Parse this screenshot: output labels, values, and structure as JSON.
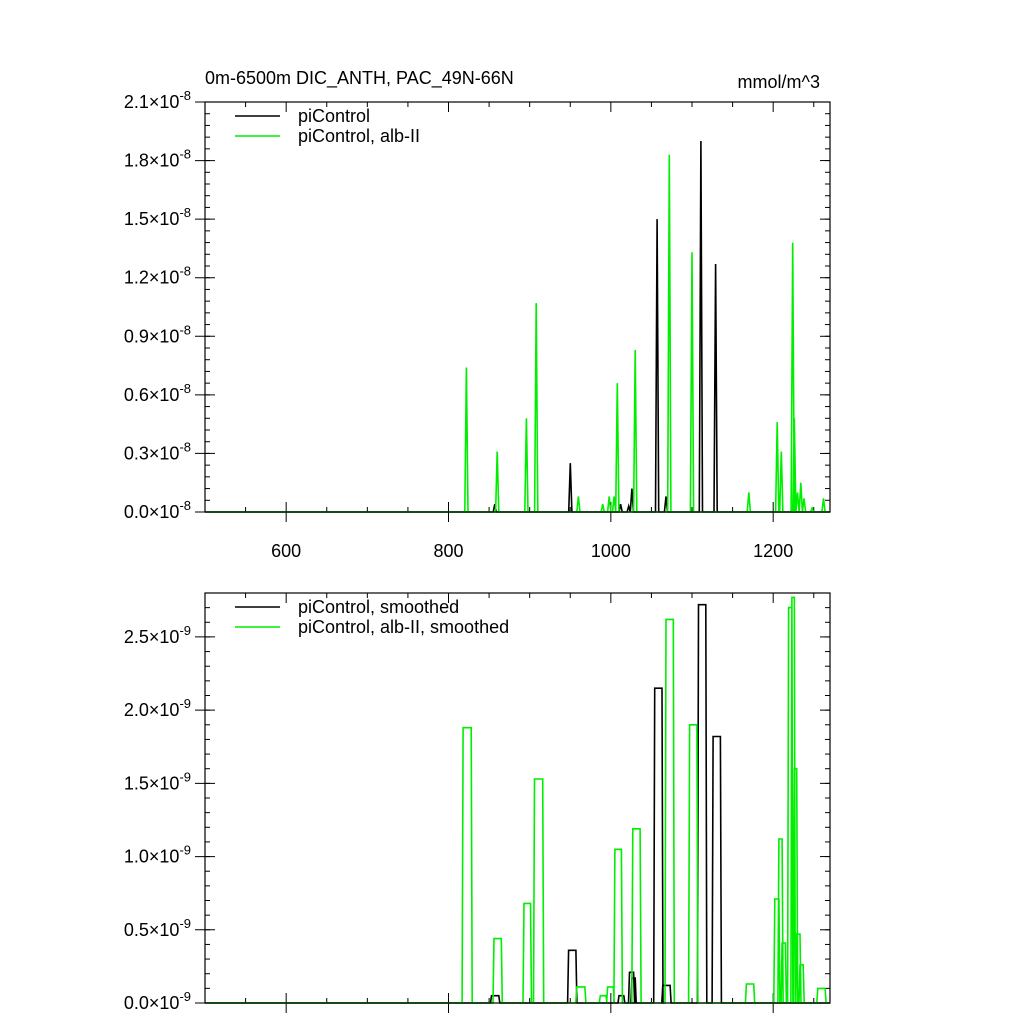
{
  "chart_data": [
    {
      "type": "line",
      "title": "0m-6500m DIC_ANTH, PAC_49N-66N",
      "units": "mmol/m^3",
      "xlim": [
        500,
        1270
      ],
      "ylim": [
        0,
        2.1e-08
      ],
      "x_ticks": [
        "600",
        "800",
        "1000",
        "1200"
      ],
      "x_tick_values": [
        600,
        800,
        1000,
        1200
      ],
      "y_ticks": [
        "0.0",
        "0.3",
        "0.6",
        "0.9",
        "1.2",
        "1.5",
        "1.8",
        "2.1"
      ],
      "y_tick_values": [
        0,
        3e-09,
        6e-09,
        9e-09,
        1.2e-08,
        1.5e-08,
        1.8e-08,
        2.1e-08
      ],
      "y_tick_exponent": "-8",
      "times_sign": "×10",
      "legend_position": "top-left",
      "series": [
        {
          "name": "piControl",
          "color": "#000000",
          "spikes": [
            [
              857,
              4e-10
            ],
            [
              950,
              2.5e-09
            ],
            [
              1012,
              4e-10
            ],
            [
              1022,
              3e-10
            ],
            [
              1026,
              1.2e-09
            ],
            [
              1057,
              1.5e-08
            ],
            [
              1068,
              8e-10
            ],
            [
              1111,
              1.9e-08
            ],
            [
              1129,
              1.27e-08
            ]
          ]
        },
        {
          "name": "piControl, alb-II",
          "color": "#00ee00",
          "spikes": [
            [
              822,
              7.4e-09
            ],
            [
              860,
              3.1e-09
            ],
            [
              896,
              4.8e-09
            ],
            [
              908,
              1.07e-08
            ],
            [
              960,
              8e-10
            ],
            [
              990,
              4e-10
            ],
            [
              998,
              8e-10
            ],
            [
              1004,
              8e-10
            ],
            [
              1008,
              6.6e-09
            ],
            [
              1030,
              8.3e-09
            ],
            [
              1072,
              1.83e-08
            ],
            [
              1100,
              1.33e-08
            ],
            [
              1170,
              1e-09
            ],
            [
              1205,
              4.6e-09
            ],
            [
              1210,
              3.1e-09
            ],
            [
              1224,
              1.38e-08
            ],
            [
              1226,
              4.8e-09
            ],
            [
              1230,
              1e-09
            ],
            [
              1234,
              1.5e-09
            ],
            [
              1238,
              7e-10
            ],
            [
              1248,
              2e-10
            ],
            [
              1262,
              7e-10
            ]
          ]
        }
      ]
    },
    {
      "type": "line",
      "xlim": [
        500,
        1270
      ],
      "ylim": [
        0,
        2.8e-09
      ],
      "x_tick_values": [
        600,
        800,
        1000,
        1200
      ],
      "y_ticks": [
        "0.0",
        "0.5",
        "1.0",
        "1.5",
        "2.0",
        "2.5"
      ],
      "y_tick_values": [
        0,
        5e-10,
        1e-09,
        1.5e-09,
        2e-09,
        2.5e-09
      ],
      "y_tick_exponent": "-9",
      "times_sign": "×10",
      "legend_position": "top-left",
      "series": [
        {
          "name": "piControl, smoothed",
          "color": "#000000",
          "blocks": [
            [
              853,
              862,
              5e-11
            ],
            [
              948,
              957,
              3.6e-10
            ],
            [
              1010,
              1016,
              5e-11
            ],
            [
              1023,
              1028,
              2.1e-10
            ],
            [
              1026,
              1030,
              1.7e-10
            ],
            [
              1054,
              1063,
              2.15e-09
            ],
            [
              1064,
              1073,
              1.2e-10
            ],
            [
              1108,
              1117,
              2.72e-09
            ],
            [
              1126,
              1135,
              1.82e-09
            ]
          ]
        },
        {
          "name": "piControl, alb-II, smoothed",
          "color": "#00ee00",
          "blocks": [
            [
              818,
              828,
              1.88e-09
            ],
            [
              856,
              865,
              4.4e-10
            ],
            [
              893,
              901,
              6.8e-10
            ],
            [
              906,
              916,
              1.53e-09
            ],
            [
              958,
              968,
              1.1e-10
            ],
            [
              987,
              994,
              5e-11
            ],
            [
              996,
              1003,
              1.1e-10
            ],
            [
              1005,
              1013,
              1.05e-09
            ],
            [
              1027,
              1036,
              1.19e-09
            ],
            [
              1068,
              1077,
              2.62e-09
            ],
            [
              1097,
              1106,
              1.9e-09
            ],
            [
              1167,
              1176,
              1.3e-10
            ],
            [
              1202,
              1207,
              7.1e-10
            ],
            [
              1207,
              1211,
              1.12e-09
            ],
            [
              1211,
              1215,
              4.1e-10
            ],
            [
              1219,
              1223,
              2.7e-09
            ],
            [
              1223,
              1226,
              2.77e-09
            ],
            [
              1226,
              1229,
              1.6e-09
            ],
            [
              1229,
              1233,
              4.7e-10
            ],
            [
              1233,
              1237,
              2.6e-10
            ],
            [
              1255,
              1264,
              1e-10
            ]
          ]
        }
      ]
    }
  ]
}
